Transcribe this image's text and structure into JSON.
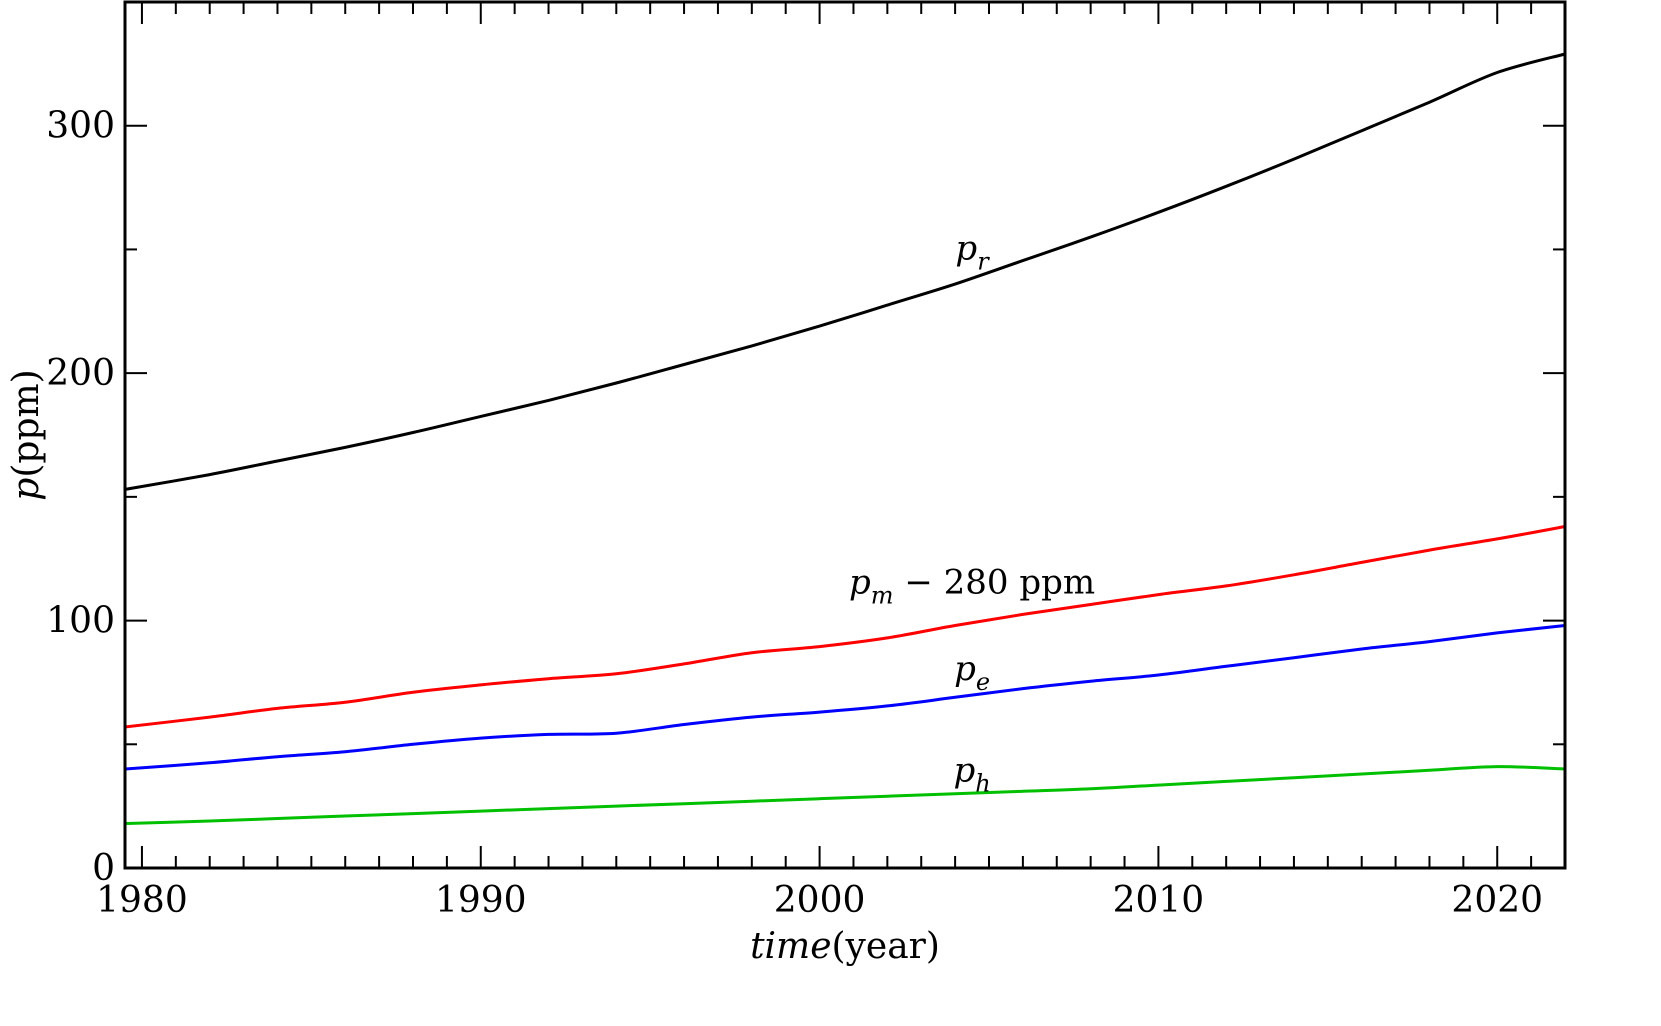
{
  "chart_data": {
    "type": "line",
    "xlim": [
      1979.5,
      2022
    ],
    "ylim": [
      0,
      350
    ],
    "x_ticks": [
      1980,
      1990,
      2000,
      2010,
      2020
    ],
    "y_ticks": [
      0,
      100,
      200,
      300
    ],
    "x_tick_labels": [
      "1980",
      "1990",
      "2000",
      "2010",
      "2020"
    ],
    "y_tick_labels": [
      "0",
      "100",
      "200",
      "300"
    ],
    "xlabel": {
      "var": "time",
      "unit": "(year)"
    },
    "ylabel": {
      "var": "p",
      "unit": "(ppm)"
    },
    "grid": false,
    "legend": "none",
    "x": [
      1979.5,
      1982,
      1984,
      1986,
      1988,
      1990,
      1992,
      1994,
      1996,
      1998,
      2000,
      2002,
      2004,
      2006,
      2008,
      2010,
      2012,
      2014,
      2016,
      2018,
      2020,
      2022
    ],
    "series": [
      {
        "name_base": "p",
        "name_sub": "r",
        "name_suffix": "",
        "color": "#000000",
        "label_at": [
          2004.5,
          246
        ],
        "values": [
          153,
          159,
          164.5,
          170,
          176,
          182.5,
          189,
          196,
          203.5,
          211,
          219,
          227.5,
          236,
          245.5,
          255,
          265,
          275.5,
          286.5,
          298,
          309.5,
          321.5,
          329
        ]
      },
      {
        "name_base": "p",
        "name_sub": "m",
        "name_suffix": " − 280 ppm",
        "color": "#ff0000",
        "label_at": [
          2004.5,
          111
        ],
        "values": [
          57,
          61,
          64.5,
          67,
          71,
          74,
          76.5,
          78.5,
          82.5,
          87,
          89.5,
          93,
          98,
          102.5,
          106.5,
          110.5,
          114,
          118.5,
          123.5,
          128.5,
          133,
          138
        ]
      },
      {
        "name_base": "p",
        "name_sub": "e",
        "name_suffix": "",
        "color": "#0000ff",
        "label_at": [
          2004.5,
          76
        ],
        "values": [
          40,
          42.5,
          45,
          47,
          50,
          52.5,
          54,
          54.5,
          58,
          61,
          63,
          65.5,
          69,
          72.5,
          75.5,
          78,
          81.5,
          85,
          88.5,
          91.5,
          95,
          98
        ]
      },
      {
        "name_base": "p",
        "name_sub": "h",
        "name_suffix": "",
        "color": "#00c000",
        "label_at": [
          2004.5,
          35
        ],
        "values": [
          18,
          19,
          20,
          21,
          22,
          23,
          24,
          25,
          26,
          27,
          28,
          29,
          30,
          31,
          32,
          33.5,
          35,
          36.5,
          38,
          39.5,
          41,
          40
        ]
      }
    ]
  }
}
